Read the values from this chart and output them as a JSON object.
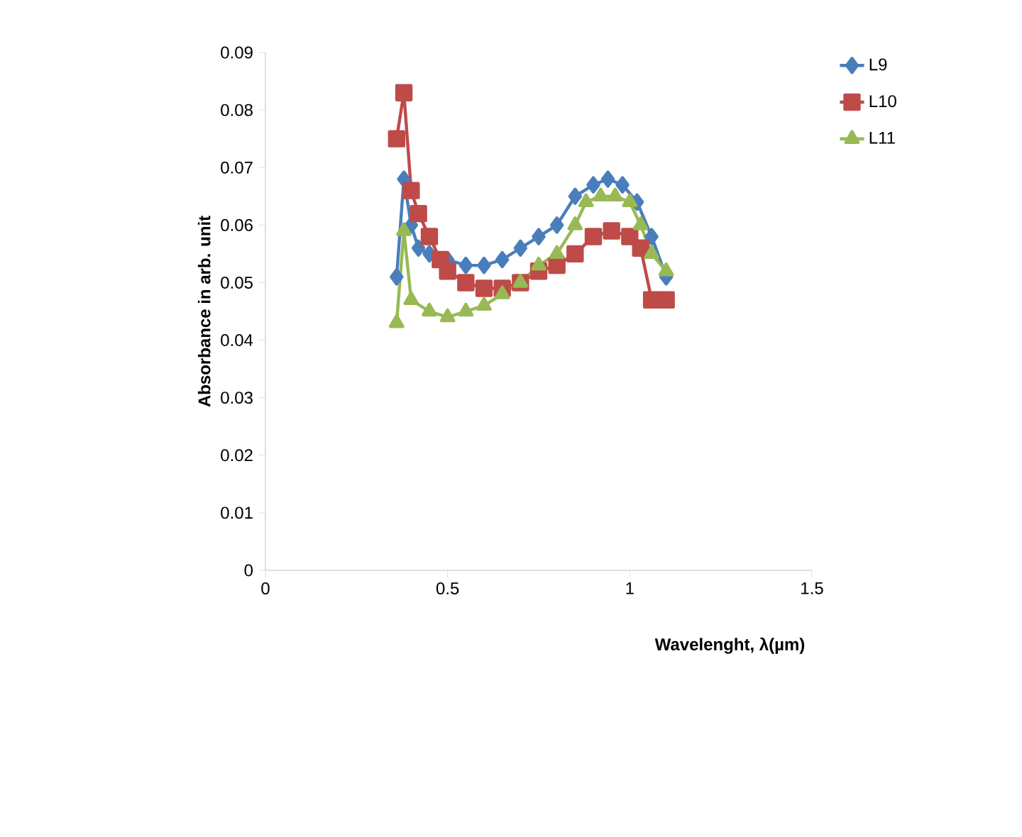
{
  "chart_data": {
    "type": "line",
    "xlabel": "Wavelenght, λ(µm)",
    "ylabel": "Absorbance in arb. unit",
    "xlim": [
      0,
      1.5
    ],
    "xticks": [
      0,
      0.5,
      1,
      1.5
    ],
    "ylim": [
      0,
      0.09
    ],
    "yticks": [
      0,
      0.01,
      0.02,
      0.03,
      0.04,
      0.05,
      0.06,
      0.07,
      0.08,
      0.09
    ],
    "legend": "top right",
    "grid": false,
    "line_style": "solid",
    "series": [
      {
        "name": "L9",
        "color": "#4a7ebb",
        "marker": "diamond",
        "x": [
          0.36,
          0.38,
          0.4,
          0.42,
          0.45,
          0.5,
          0.55,
          0.6,
          0.65,
          0.7,
          0.75,
          0.8,
          0.85,
          0.9,
          0.94,
          0.98,
          1.02,
          1.06,
          1.1
        ],
        "values": [
          0.051,
          0.068,
          0.06,
          0.056,
          0.055,
          0.054,
          0.053,
          0.053,
          0.054,
          0.056,
          0.058,
          0.06,
          0.065,
          0.067,
          0.068,
          0.067,
          0.064,
          0.058,
          0.051
        ]
      },
      {
        "name": "L10",
        "color": "#be4b48",
        "marker": "square",
        "x": [
          0.36,
          0.38,
          0.4,
          0.42,
          0.45,
          0.48,
          0.5,
          0.55,
          0.6,
          0.65,
          0.7,
          0.75,
          0.8,
          0.85,
          0.9,
          0.95,
          1.0,
          1.03,
          1.06,
          1.1
        ],
        "values": [
          0.075,
          0.083,
          0.066,
          0.062,
          0.058,
          0.054,
          0.052,
          0.05,
          0.049,
          0.049,
          0.05,
          0.052,
          0.053,
          0.055,
          0.058,
          0.059,
          0.058,
          0.056,
          0.047,
          0.047
        ]
      },
      {
        "name": "L11",
        "color": "#98b954",
        "marker": "triangle",
        "x": [
          0.36,
          0.38,
          0.4,
          0.45,
          0.5,
          0.55,
          0.6,
          0.65,
          0.7,
          0.75,
          0.8,
          0.85,
          0.88,
          0.92,
          0.96,
          1.0,
          1.03,
          1.06,
          1.1
        ],
        "values": [
          0.043,
          0.059,
          0.047,
          0.045,
          0.044,
          0.045,
          0.046,
          0.048,
          0.05,
          0.053,
          0.055,
          0.06,
          0.064,
          0.065,
          0.065,
          0.064,
          0.06,
          0.055,
          0.052
        ]
      }
    ]
  }
}
